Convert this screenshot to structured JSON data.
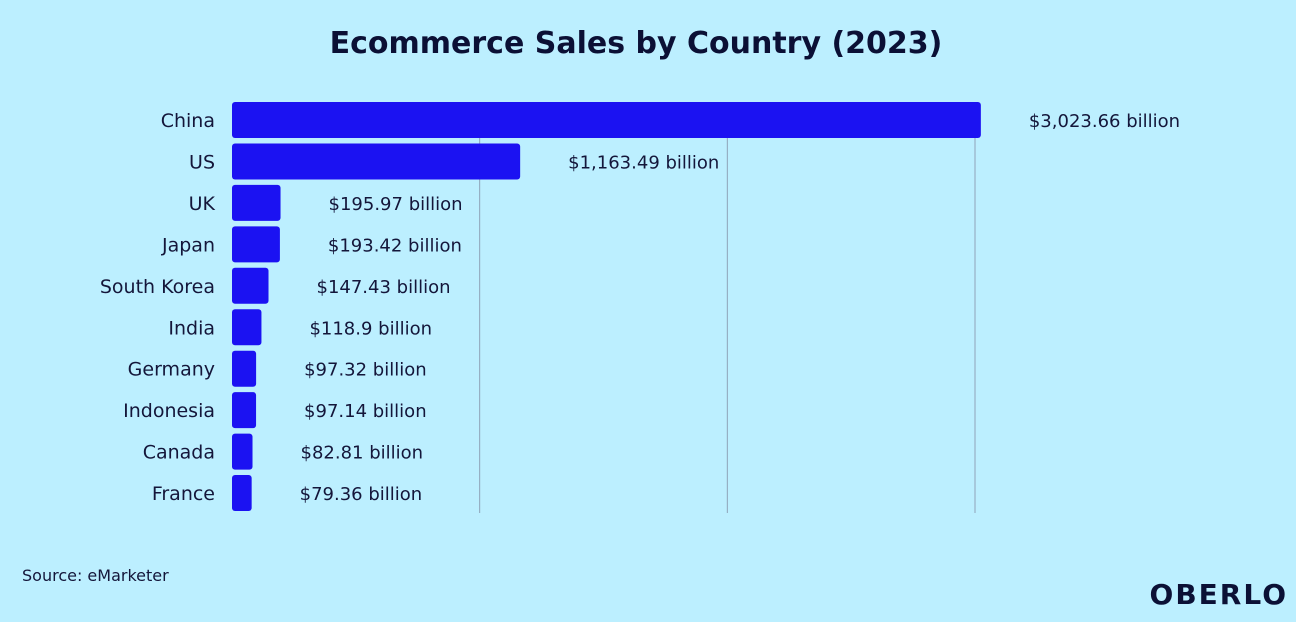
{
  "colors": {
    "background": "#bcefff",
    "bar": "#1b12f2",
    "grid": "#8fa3b8",
    "text": "#14163a",
    "title": "#0b1035"
  },
  "chart_data": {
    "type": "bar",
    "orientation": "horizontal",
    "title": "Ecommerce Sales by Country (2023)",
    "source": "Source: eMarketer",
    "brand": "OBERLO",
    "unit": "billion",
    "xlim": [
      0,
      3000
    ],
    "grid_values": [
      1000,
      2000,
      3000
    ],
    "categories": [
      "China",
      "US",
      "UK",
      "Japan",
      "South Korea",
      "India",
      "Germany",
      "Indonesia",
      "Canada",
      "France"
    ],
    "values": [
      3023.66,
      1163.49,
      195.97,
      193.42,
      147.43,
      118.9,
      97.32,
      97.14,
      82.81,
      79.36
    ],
    "value_labels": [
      "$3,023.66 billion",
      "$1,163.49 billion",
      "$195.97 billion",
      "$193.42 billion",
      "$147.43 billion",
      "$118.9 billion",
      "$97.32 billion",
      "$97.14 billion",
      "$82.81 billion",
      "$79.36 billion"
    ]
  }
}
